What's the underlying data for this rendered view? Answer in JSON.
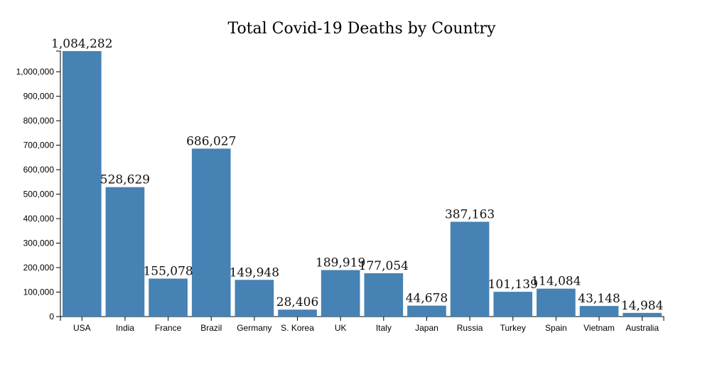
{
  "chart_data": {
    "type": "bar",
    "title": "Total Covid-19 Deaths by Country",
    "xlabel": "",
    "ylabel": "",
    "categories": [
      "USA",
      "India",
      "France",
      "Brazil",
      "Germany",
      "S. Korea",
      "UK",
      "Italy",
      "Japan",
      "Russia",
      "Turkey",
      "Spain",
      "Vietnam",
      "Australia"
    ],
    "values": [
      1084282,
      528629,
      155078,
      686027,
      149948,
      28406,
      189919,
      177054,
      44678,
      387163,
      101139,
      114084,
      43148,
      14984
    ],
    "value_labels": [
      "1,084,282",
      "528,629",
      "155,078",
      "686,027",
      "149,948",
      "28,406",
      "189,919",
      "177,054",
      "44,678",
      "387,163",
      "101,139",
      "114,084",
      "43,148",
      "14,984"
    ],
    "y_ticks": [
      0,
      100000,
      200000,
      300000,
      400000,
      500000,
      600000,
      700000,
      800000,
      900000,
      1000000
    ],
    "y_tick_labels": [
      "0",
      "100,000",
      "200,000",
      "300,000",
      "400,000",
      "500,000",
      "600,000",
      "700,000",
      "800,000",
      "900,000",
      "1,000,000"
    ],
    "ylim": [
      0,
      1084282
    ],
    "grid": false,
    "legend": "none",
    "bar_color": "#4682b4"
  }
}
